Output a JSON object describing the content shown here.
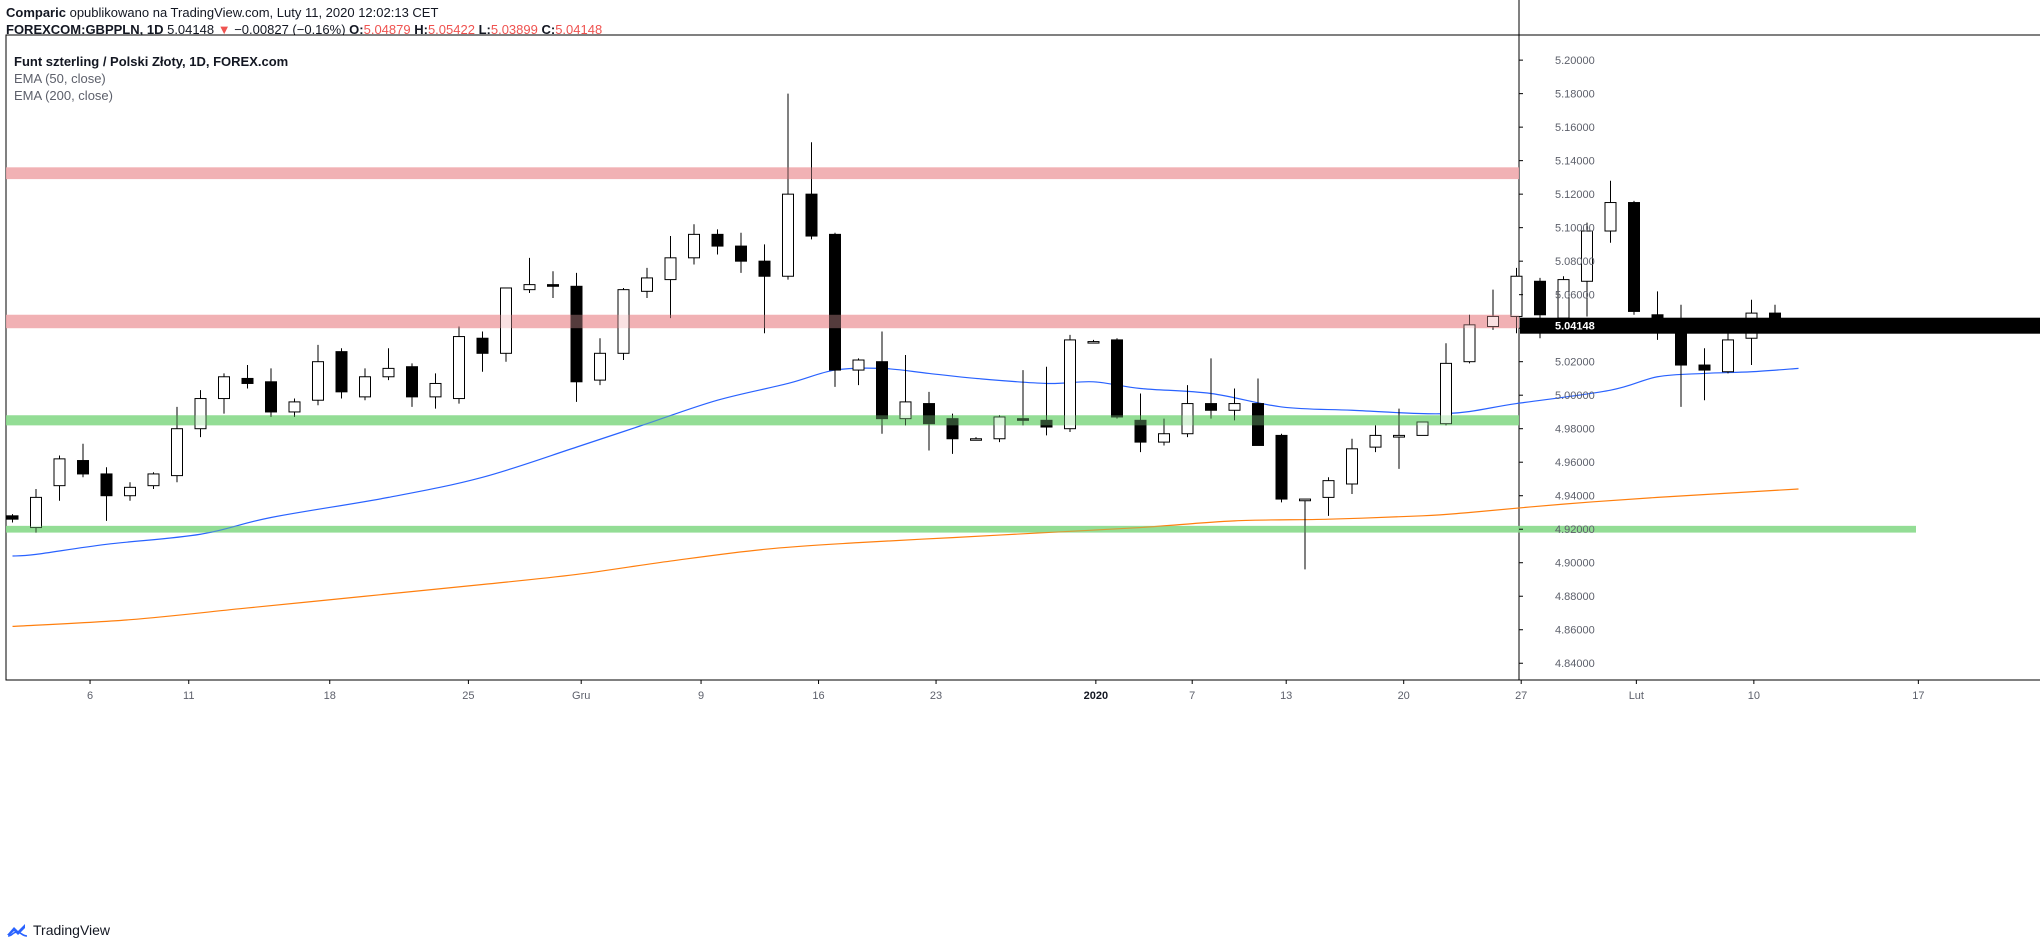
{
  "header": {
    "author": "Comparic",
    "published": "opublikowano na TradingView.com, Luty 11, 2020 12:02:13 CET",
    "symbol": "FOREXCOM:GBPPLN, 1D",
    "last": "5.04148",
    "change_arrow": "▼",
    "change": "−0.00827 (−0.16%)",
    "o_label": "O:",
    "o_val": "5.04879",
    "h_label": "H:",
    "h_val": "5.05422",
    "l_label": "L:",
    "l_val": "5.03899",
    "c_label": "C:",
    "c_val": "5.04148"
  },
  "legend": {
    "title": "Funt szterling / Polski Złoty, 1D, FOREX.com",
    "ema50": "EMA (50, close)",
    "ema200": "EMA (200, close)"
  },
  "footer": {
    "brand": "TradingView",
    "logo_icon": "tradingview-logo-icon"
  },
  "chart_data": {
    "type": "candlestick",
    "ylim": [
      4.83,
      5.215
    ],
    "y_ticks": [
      "5.20000",
      "5.18000",
      "5.16000",
      "5.14000",
      "5.12000",
      "5.10000",
      "5.08000",
      "5.06000",
      "5.04000",
      "5.02000",
      "5.00000",
      "4.98000",
      "4.96000",
      "4.94000",
      "4.92000",
      "4.90000",
      "4.88000",
      "4.86000",
      "4.84000"
    ],
    "x_ticks": [
      {
        "label": "6",
        "i": 3.3
      },
      {
        "label": "11",
        "i": 7.5
      },
      {
        "label": "18",
        "i": 13.5
      },
      {
        "label": "25",
        "i": 19.4
      },
      {
        "label": "Gru",
        "i": 24.2
      },
      {
        "label": "9",
        "i": 29.3
      },
      {
        "label": "16",
        "i": 34.3
      },
      {
        "label": "23",
        "i": 39.3
      },
      {
        "label": "2020",
        "i": 46.1
      },
      {
        "label": "7",
        "i": 50.2
      },
      {
        "label": "13",
        "i": 54.2
      },
      {
        "label": "20",
        "i": 59.2
      },
      {
        "label": "27",
        "i": 64.2
      },
      {
        "label": "Lut",
        "i": 69.1
      },
      {
        "label": "10",
        "i": 74.1
      },
      {
        "label": "17",
        "i": 81.1
      }
    ],
    "last_price_label": "5.04148",
    "candles": [
      [
        4.928,
        4.929,
        4.924,
        4.926
      ],
      [
        4.921,
        4.944,
        4.918,
        4.939
      ],
      [
        4.946,
        4.964,
        4.937,
        4.962
      ],
      [
        4.961,
        4.971,
        4.951,
        4.953
      ],
      [
        4.953,
        4.957,
        4.925,
        4.94
      ],
      [
        4.94,
        4.948,
        4.937,
        4.945
      ],
      [
        4.946,
        4.954,
        4.944,
        4.953
      ],
      [
        4.952,
        4.993,
        4.948,
        4.98
      ],
      [
        4.98,
        5.003,
        4.975,
        4.998
      ],
      [
        4.998,
        5.013,
        4.989,
        5.011
      ],
      [
        5.01,
        5.018,
        5.004,
        5.007
      ],
      [
        5.008,
        5.016,
        4.987,
        4.99
      ],
      [
        4.99,
        4.998,
        4.987,
        4.996
      ],
      [
        4.997,
        5.03,
        4.994,
        5.02
      ],
      [
        5.026,
        5.028,
        4.998,
        5.002
      ],
      [
        4.999,
        5.016,
        4.997,
        5.011
      ],
      [
        5.011,
        5.028,
        5.009,
        5.016
      ],
      [
        5.017,
        5.019,
        4.993,
        4.999
      ],
      [
        4.999,
        5.013,
        4.992,
        5.007
      ],
      [
        4.998,
        5.041,
        4.995,
        5.035
      ],
      [
        5.034,
        5.038,
        5.014,
        5.025
      ],
      [
        5.025,
        5.063,
        5.02,
        5.064
      ],
      [
        5.063,
        5.082,
        5.061,
        5.066
      ],
      [
        5.066,
        5.074,
        5.058,
        5.065
      ],
      [
        5.065,
        5.073,
        4.996,
        5.008
      ],
      [
        5.009,
        5.034,
        5.006,
        5.025
      ],
      [
        5.025,
        5.064,
        5.021,
        5.063
      ],
      [
        5.062,
        5.076,
        5.058,
        5.07
      ],
      [
        5.069,
        5.095,
        5.046,
        5.082
      ],
      [
        5.082,
        5.102,
        5.078,
        5.096
      ],
      [
        5.096,
        5.099,
        5.084,
        5.089
      ],
      [
        5.089,
        5.097,
        5.073,
        5.08
      ],
      [
        5.08,
        5.09,
        5.037,
        5.071
      ],
      [
        5.071,
        5.18,
        5.069,
        5.12
      ],
      [
        5.12,
        5.151,
        5.093,
        5.095
      ],
      [
        5.096,
        5.097,
        5.005,
        5.015
      ],
      [
        5.015,
        5.022,
        5.006,
        5.021
      ],
      [
        5.02,
        5.038,
        4.977,
        4.986
      ],
      [
        4.986,
        5.024,
        4.982,
        4.996
      ],
      [
        4.995,
        5.002,
        4.967,
        4.983
      ],
      [
        4.986,
        4.989,
        4.965,
        4.974
      ],
      [
        4.974,
        4.975,
        4.974,
        4.974
      ],
      [
        4.974,
        4.988,
        4.972,
        4.987
      ],
      [
        4.986,
        5.015,
        4.982,
        4.985
      ],
      [
        4.985,
        5.017,
        4.976,
        4.981
      ],
      [
        4.98,
        5.036,
        4.978,
        5.033
      ],
      [
        5.032,
        5.033,
        5.031,
        5.032
      ],
      [
        5.033,
        5.034,
        4.986,
        4.987
      ],
      [
        4.985,
        5.001,
        4.966,
        4.972
      ],
      [
        4.972,
        4.986,
        4.97,
        4.977
      ],
      [
        4.977,
        5.006,
        4.975,
        4.995
      ],
      [
        4.995,
        5.022,
        4.986,
        4.991
      ],
      [
        4.991,
        5.004,
        4.985,
        4.995
      ],
      [
        4.995,
        5.01,
        4.973,
        4.97
      ],
      [
        4.976,
        4.977,
        4.936,
        4.938
      ],
      [
        4.937,
        4.938,
        4.896,
        4.938
      ],
      [
        4.939,
        4.951,
        4.928,
        4.949
      ],
      [
        4.947,
        4.974,
        4.941,
        4.968
      ],
      [
        4.969,
        4.982,
        4.966,
        4.976
      ],
      [
        4.975,
        4.992,
        4.956,
        4.976
      ],
      [
        4.976,
        4.984,
        4.979,
        4.984
      ],
      [
        4.983,
        5.031,
        4.982,
        5.019
      ],
      [
        5.02,
        5.048,
        5.019,
        5.042
      ],
      [
        5.041,
        5.063,
        5.039,
        5.047
      ],
      [
        5.047,
        5.076,
        5.037,
        5.071
      ],
      [
        5.068,
        5.07,
        5.034,
        5.048
      ],
      [
        5.046,
        5.071,
        5.046,
        5.069
      ],
      [
        5.068,
        5.103,
        5.047,
        5.098
      ],
      [
        5.098,
        5.128,
        5.091,
        5.115
      ],
      [
        5.115,
        5.116,
        5.048,
        5.05
      ],
      [
        5.048,
        5.062,
        5.033,
        5.044
      ],
      [
        5.043,
        5.054,
        4.993,
        5.018
      ],
      [
        5.018,
        5.028,
        4.997,
        5.015
      ],
      [
        5.014,
        5.046,
        5.013,
        5.033
      ],
      [
        5.034,
        5.057,
        5.018,
        5.049
      ],
      [
        5.049,
        5.054,
        5.038,
        5.041
      ]
    ],
    "ema50": [
      [
        0,
        4.904
      ],
      [
        1,
        4.905
      ],
      [
        4,
        4.911
      ],
      [
        8,
        4.917
      ],
      [
        11,
        4.927
      ],
      [
        16,
        4.939
      ],
      [
        20,
        4.951
      ],
      [
        24,
        4.969
      ],
      [
        27,
        4.983
      ],
      [
        30,
        4.997
      ],
      [
        33,
        5.007
      ],
      [
        35,
        5.015
      ],
      [
        37,
        5.016
      ],
      [
        39,
        5.013
      ],
      [
        41,
        5.01
      ],
      [
        44,
        5.007
      ],
      [
        46,
        5.008
      ],
      [
        48,
        5.004
      ],
      [
        51,
        5.001
      ],
      [
        54,
        4.993
      ],
      [
        57,
        4.991
      ],
      [
        61,
        4.989
      ],
      [
        64,
        4.995
      ],
      [
        68,
        5.003
      ],
      [
        70,
        5.011
      ],
      [
        72,
        5.013
      ],
      [
        74,
        5.014
      ],
      [
        76,
        5.016
      ]
    ],
    "ema200": [
      [
        0,
        4.862
      ],
      [
        5,
        4.866
      ],
      [
        10,
        4.873
      ],
      [
        15,
        4.88
      ],
      [
        20,
        4.887
      ],
      [
        24,
        4.893
      ],
      [
        28,
        4.901
      ],
      [
        32,
        4.908
      ],
      [
        36,
        4.912
      ],
      [
        40,
        4.915
      ],
      [
        44,
        4.918
      ],
      [
        48,
        4.921
      ],
      [
        52,
        4.925
      ],
      [
        56,
        4.926
      ],
      [
        60,
        4.928
      ],
      [
        62,
        4.93
      ],
      [
        66,
        4.935
      ],
      [
        70,
        4.939
      ],
      [
        76,
        4.944
      ]
    ],
    "zones": [
      {
        "lo": 5.129,
        "hi": 5.136,
        "color": "#f0a8ab",
        "x_end_i": null
      },
      {
        "lo": 5.04,
        "hi": 5.048,
        "color": "#f0a8ab",
        "x_end_i": null
      },
      {
        "lo": 4.982,
        "hi": 4.988,
        "color": "#88d98a",
        "x_end_i": null
      },
      {
        "lo": 4.918,
        "hi": 4.922,
        "color": "#88d98a",
        "x_end_i": 81.0
      }
    ],
    "colors": {
      "up_body": "#ffffff",
      "down_body": "#000000",
      "wick": "#000000",
      "ema50": "#2962ff",
      "ema200": "#ff7f0e",
      "grid": "#e0e3eb",
      "axis": "#5d606b",
      "price_label_bg": "#000000",
      "price_label_fg": "#ffffff"
    }
  }
}
